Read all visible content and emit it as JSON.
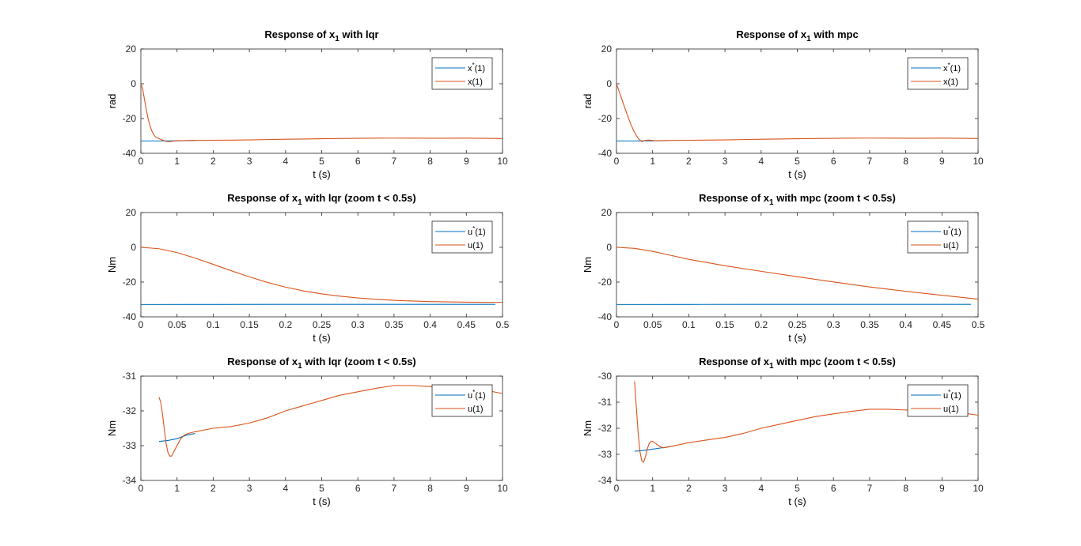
{
  "colors": {
    "ref": "#0072BD",
    "actual": "#D95319",
    "axis": "#262626",
    "text": "#000000"
  },
  "chart_data": [
    {
      "type": "line",
      "title": {
        "main": "Response of x",
        "sub": "1",
        "rest": " with lqr"
      },
      "xlabel": "t (s)",
      "ylabel": "rad",
      "xlim": [
        0,
        10
      ],
      "ylim": [
        -40,
        20
      ],
      "xticks": [
        0,
        1,
        2,
        3,
        4,
        5,
        6,
        7,
        8,
        9,
        10
      ],
      "yticks": [
        20,
        0,
        -20,
        -40
      ],
      "xticklabels": [
        "0",
        "1",
        "2",
        "3",
        "4",
        "5",
        "6",
        "7",
        "8",
        "9",
        "10"
      ],
      "yticklabels": [
        "20",
        "0",
        "-20",
        "-40"
      ],
      "legend": "top-right",
      "series": [
        {
          "name": {
            "base": "x",
            "sup": "*",
            "rest": "(1)"
          },
          "color": "#0072BD",
          "x": [
            0,
            0.5,
            1.0,
            1.5
          ],
          "y": [
            -32.9,
            -32.9,
            -32.8,
            -32.6
          ]
        },
        {
          "name": {
            "base": "x",
            "sup": "",
            "rest": "(1)"
          },
          "color": "#D95319",
          "x": [
            0,
            0.05,
            0.1,
            0.15,
            0.2,
            0.25,
            0.3,
            0.35,
            0.4,
            0.5,
            0.6,
            0.7,
            0.8,
            0.9,
            1.0,
            1.5,
            2,
            2.5,
            3,
            3.5,
            4,
            4.5,
            5,
            5.5,
            6,
            6.5,
            7,
            7.5,
            8,
            8.5,
            9,
            9.5,
            10
          ],
          "y": [
            0,
            -3,
            -9,
            -15,
            -20,
            -24,
            -27,
            -29,
            -30.5,
            -31.6,
            -32.4,
            -33.2,
            -33.3,
            -33.0,
            -32.8,
            -32.6,
            -32.5,
            -32.4,
            -32.3,
            -32.1,
            -31.9,
            -31.8,
            -31.6,
            -31.5,
            -31.4,
            -31.3,
            -31.25,
            -31.3,
            -31.35,
            -31.35,
            -31.3,
            -31.4,
            -31.5
          ]
        }
      ]
    },
    {
      "type": "line",
      "title": {
        "main": "Response of x",
        "sub": "1",
        "rest": " with mpc"
      },
      "xlabel": "t (s)",
      "ylabel": "rad",
      "xlim": [
        0,
        10
      ],
      "ylim": [
        -40,
        20
      ],
      "xticks": [
        0,
        1,
        2,
        3,
        4,
        5,
        6,
        7,
        8,
        9,
        10
      ],
      "yticks": [
        20,
        0,
        -20,
        -40
      ],
      "xticklabels": [
        "0",
        "1",
        "2",
        "3",
        "4",
        "5",
        "6",
        "7",
        "8",
        "9",
        "10"
      ],
      "yticklabels": [
        "20",
        "0",
        "-20",
        "-40"
      ],
      "legend": "top-right",
      "series": [
        {
          "name": {
            "base": "x",
            "sup": "*",
            "rest": "(1)"
          },
          "color": "#0072BD",
          "x": [
            0,
            0.5,
            1.0,
            1.4
          ],
          "y": [
            -32.9,
            -32.9,
            -32.8,
            -32.7
          ]
        },
        {
          "name": {
            "base": "x",
            "sup": "",
            "rest": "(1)"
          },
          "color": "#D95319",
          "x": [
            0,
            0.1,
            0.2,
            0.3,
            0.4,
            0.5,
            0.6,
            0.7,
            0.8,
            0.9,
            1.0,
            1.1,
            1.2,
            1.3,
            1.5,
            2,
            2.5,
            3,
            3.5,
            4,
            4.5,
            5,
            5.5,
            6,
            6.5,
            7,
            7.5,
            8,
            8.5,
            9,
            9.5,
            10
          ],
          "y": [
            0,
            -6,
            -12,
            -18,
            -23.5,
            -28,
            -31.5,
            -33.3,
            -32.6,
            -32.4,
            -32.6,
            -32.8,
            -32.7,
            -32.7,
            -32.6,
            -32.5,
            -32.4,
            -32.3,
            -32.1,
            -31.9,
            -31.8,
            -31.6,
            -31.5,
            -31.4,
            -31.3,
            -31.25,
            -31.3,
            -31.35,
            -31.35,
            -31.3,
            -31.4,
            -31.5
          ]
        }
      ]
    },
    {
      "type": "line",
      "title": {
        "main": "Response of x",
        "sub": "1",
        "rest": " with lqr (zoom t < 0.5s)"
      },
      "xlabel": "t (s)",
      "ylabel": "Nm",
      "xlim": [
        0,
        0.5
      ],
      "ylim": [
        -40,
        20
      ],
      "xticks": [
        0,
        0.05,
        0.1,
        0.15,
        0.2,
        0.25,
        0.3,
        0.35,
        0.4,
        0.45,
        0.5
      ],
      "yticks": [
        20,
        0,
        -20,
        -40
      ],
      "xticklabels": [
        "0",
        "0.05",
        "0.1",
        "0.15",
        "0.2",
        "0.25",
        "0.3",
        "0.35",
        "0.4",
        "0.45",
        "0.5"
      ],
      "yticklabels": [
        "20",
        "0",
        "-20",
        "-40"
      ],
      "legend": "top-right",
      "series": [
        {
          "name": {
            "base": "u",
            "sup": "*",
            "rest": "(1)"
          },
          "color": "#0072BD",
          "x": [
            0,
            0.1,
            0.2,
            0.3,
            0.4,
            0.49
          ],
          "y": [
            -32.9,
            -32.85,
            -32.8,
            -32.8,
            -32.8,
            -32.8
          ]
        },
        {
          "name": {
            "base": "u",
            "sup": "",
            "rest": "(1)"
          },
          "color": "#D95319",
          "x": [
            0,
            0.025,
            0.05,
            0.075,
            0.1,
            0.125,
            0.15,
            0.175,
            0.2,
            0.225,
            0.25,
            0.275,
            0.3,
            0.325,
            0.35,
            0.375,
            0.4,
            0.425,
            0.45,
            0.475,
            0.5
          ],
          "y": [
            0,
            -0.8,
            -3.0,
            -6.2,
            -9.8,
            -13.5,
            -17.0,
            -20.2,
            -22.9,
            -25.1,
            -26.8,
            -28.1,
            -29.1,
            -29.9,
            -30.5,
            -30.9,
            -31.2,
            -31.4,
            -31.55,
            -31.6,
            -31.65
          ]
        }
      ]
    },
    {
      "type": "line",
      "title": {
        "main": "Response of x",
        "sub": "1",
        "rest": " with mpc (zoom t < 0.5s)"
      },
      "xlabel": "t (s)",
      "ylabel": "Nm",
      "xlim": [
        0,
        0.5
      ],
      "ylim": [
        -40,
        20
      ],
      "xticks": [
        0,
        0.05,
        0.1,
        0.15,
        0.2,
        0.25,
        0.3,
        0.35,
        0.4,
        0.45,
        0.5
      ],
      "yticks": [
        20,
        0,
        -20,
        -40
      ],
      "xticklabels": [
        "0",
        "0.05",
        "0.1",
        "0.15",
        "0.2",
        "0.25",
        "0.3",
        "0.35",
        "0.4",
        "0.45",
        "0.5"
      ],
      "yticklabels": [
        "20",
        "0",
        "-20",
        "-40"
      ],
      "legend": "top-right",
      "series": [
        {
          "name": {
            "base": "u",
            "sup": "*",
            "rest": "(1)"
          },
          "color": "#0072BD",
          "x": [
            0,
            0.1,
            0.2,
            0.3,
            0.4,
            0.49
          ],
          "y": [
            -32.9,
            -32.85,
            -32.8,
            -32.8,
            -32.8,
            -32.8
          ]
        },
        {
          "name": {
            "base": "u",
            "sup": "",
            "rest": "(1)"
          },
          "color": "#D95319",
          "x": [
            0,
            0.025,
            0.05,
            0.075,
            0.1,
            0.15,
            0.2,
            0.25,
            0.3,
            0.35,
            0.4,
            0.45,
            0.5
          ],
          "y": [
            0,
            -0.6,
            -2.3,
            -4.6,
            -6.9,
            -10.6,
            -13.8,
            -16.9,
            -19.9,
            -22.8,
            -25.3,
            -27.6,
            -29.8
          ]
        }
      ]
    },
    {
      "type": "line",
      "title": {
        "main": "Response of x",
        "sub": "1",
        "rest": " with lqr (zoom t < 0.5s)"
      },
      "xlabel": "t (s)",
      "ylabel": "Nm",
      "xlim": [
        0,
        10
      ],
      "ylim": [
        -34,
        -31
      ],
      "xticks": [
        0,
        1,
        2,
        3,
        4,
        5,
        6,
        7,
        8,
        9,
        10
      ],
      "yticks": [
        -31,
        -32,
        -33,
        -34
      ],
      "xticklabels": [
        "0",
        "1",
        "2",
        "3",
        "4",
        "5",
        "6",
        "7",
        "8",
        "9",
        "10"
      ],
      "yticklabels": [
        "-31",
        "-32",
        "-33",
        "-34"
      ],
      "legend": "top-right",
      "series": [
        {
          "name": {
            "base": "u",
            "sup": "*",
            "rest": "(1)"
          },
          "color": "#0072BD",
          "x": [
            0.5,
            0.75,
            1.0,
            1.25,
            1.5
          ],
          "y": [
            -32.88,
            -32.85,
            -32.8,
            -32.7,
            -32.65
          ]
        },
        {
          "name": {
            "base": "u",
            "sup": "",
            "rest": "(1)"
          },
          "color": "#D95319",
          "x": [
            0.5,
            0.55,
            0.6,
            0.65,
            0.7,
            0.75,
            0.8,
            0.85,
            0.9,
            1.0,
            1.1,
            1.2,
            1.3,
            1.5,
            2,
            2.5,
            3,
            3.5,
            4,
            4.5,
            5,
            5.5,
            6,
            6.5,
            7,
            7.5,
            8,
            8.5,
            9,
            9.5,
            10
          ],
          "y": [
            -31.6,
            -31.75,
            -32.1,
            -32.55,
            -32.95,
            -33.2,
            -33.3,
            -33.3,
            -33.2,
            -33.0,
            -32.8,
            -32.7,
            -32.65,
            -32.6,
            -32.5,
            -32.45,
            -32.35,
            -32.2,
            -32.0,
            -31.85,
            -31.7,
            -31.55,
            -31.45,
            -31.35,
            -31.27,
            -31.27,
            -31.3,
            -31.3,
            -31.35,
            -31.4,
            -31.5
          ]
        }
      ]
    },
    {
      "type": "line",
      "title": {
        "main": "Response of x",
        "sub": "1",
        "rest": " with mpc (zoom t < 0.5s)"
      },
      "xlabel": "t (s)",
      "ylabel": "Nm",
      "xlim": [
        0,
        10
      ],
      "ylim": [
        -34,
        -30
      ],
      "xticks": [
        0,
        1,
        2,
        3,
        4,
        5,
        6,
        7,
        8,
        9,
        10
      ],
      "yticks": [
        -30,
        -31,
        -32,
        -33,
        -34
      ],
      "xticklabels": [
        "0",
        "1",
        "2",
        "3",
        "4",
        "5",
        "6",
        "7",
        "8",
        "9",
        "10"
      ],
      "yticklabels": [
        "-30",
        "-31",
        "-32",
        "-33",
        "-34"
      ],
      "legend": "top-right",
      "series": [
        {
          "name": {
            "base": "u",
            "sup": "*",
            "rest": "(1)"
          },
          "color": "#0072BD",
          "x": [
            0.5,
            0.75,
            1.0,
            1.25,
            1.5
          ],
          "y": [
            -32.88,
            -32.85,
            -32.8,
            -32.75,
            -32.7
          ]
        },
        {
          "name": {
            "base": "u",
            "sup": "",
            "rest": "(1)"
          },
          "color": "#D95319",
          "x": [
            0.5,
            0.55,
            0.6,
            0.65,
            0.7,
            0.75,
            0.8,
            0.85,
            0.9,
            0.95,
            1.0,
            1.05,
            1.1,
            1.2,
            1.3,
            1.5,
            2,
            2.5,
            3,
            3.5,
            4,
            4.5,
            5,
            5.5,
            6,
            6.5,
            7,
            7.5,
            8,
            8.5,
            9,
            9.5,
            10
          ],
          "y": [
            -30.2,
            -31.2,
            -32.2,
            -32.9,
            -33.25,
            -33.3,
            -33.1,
            -32.8,
            -32.6,
            -32.5,
            -32.5,
            -32.55,
            -32.6,
            -32.7,
            -32.75,
            -32.7,
            -32.55,
            -32.45,
            -32.35,
            -32.2,
            -32.0,
            -31.85,
            -31.7,
            -31.55,
            -31.45,
            -31.35,
            -31.27,
            -31.27,
            -31.3,
            -31.3,
            -31.35,
            -31.4,
            -31.5
          ]
        }
      ]
    }
  ]
}
